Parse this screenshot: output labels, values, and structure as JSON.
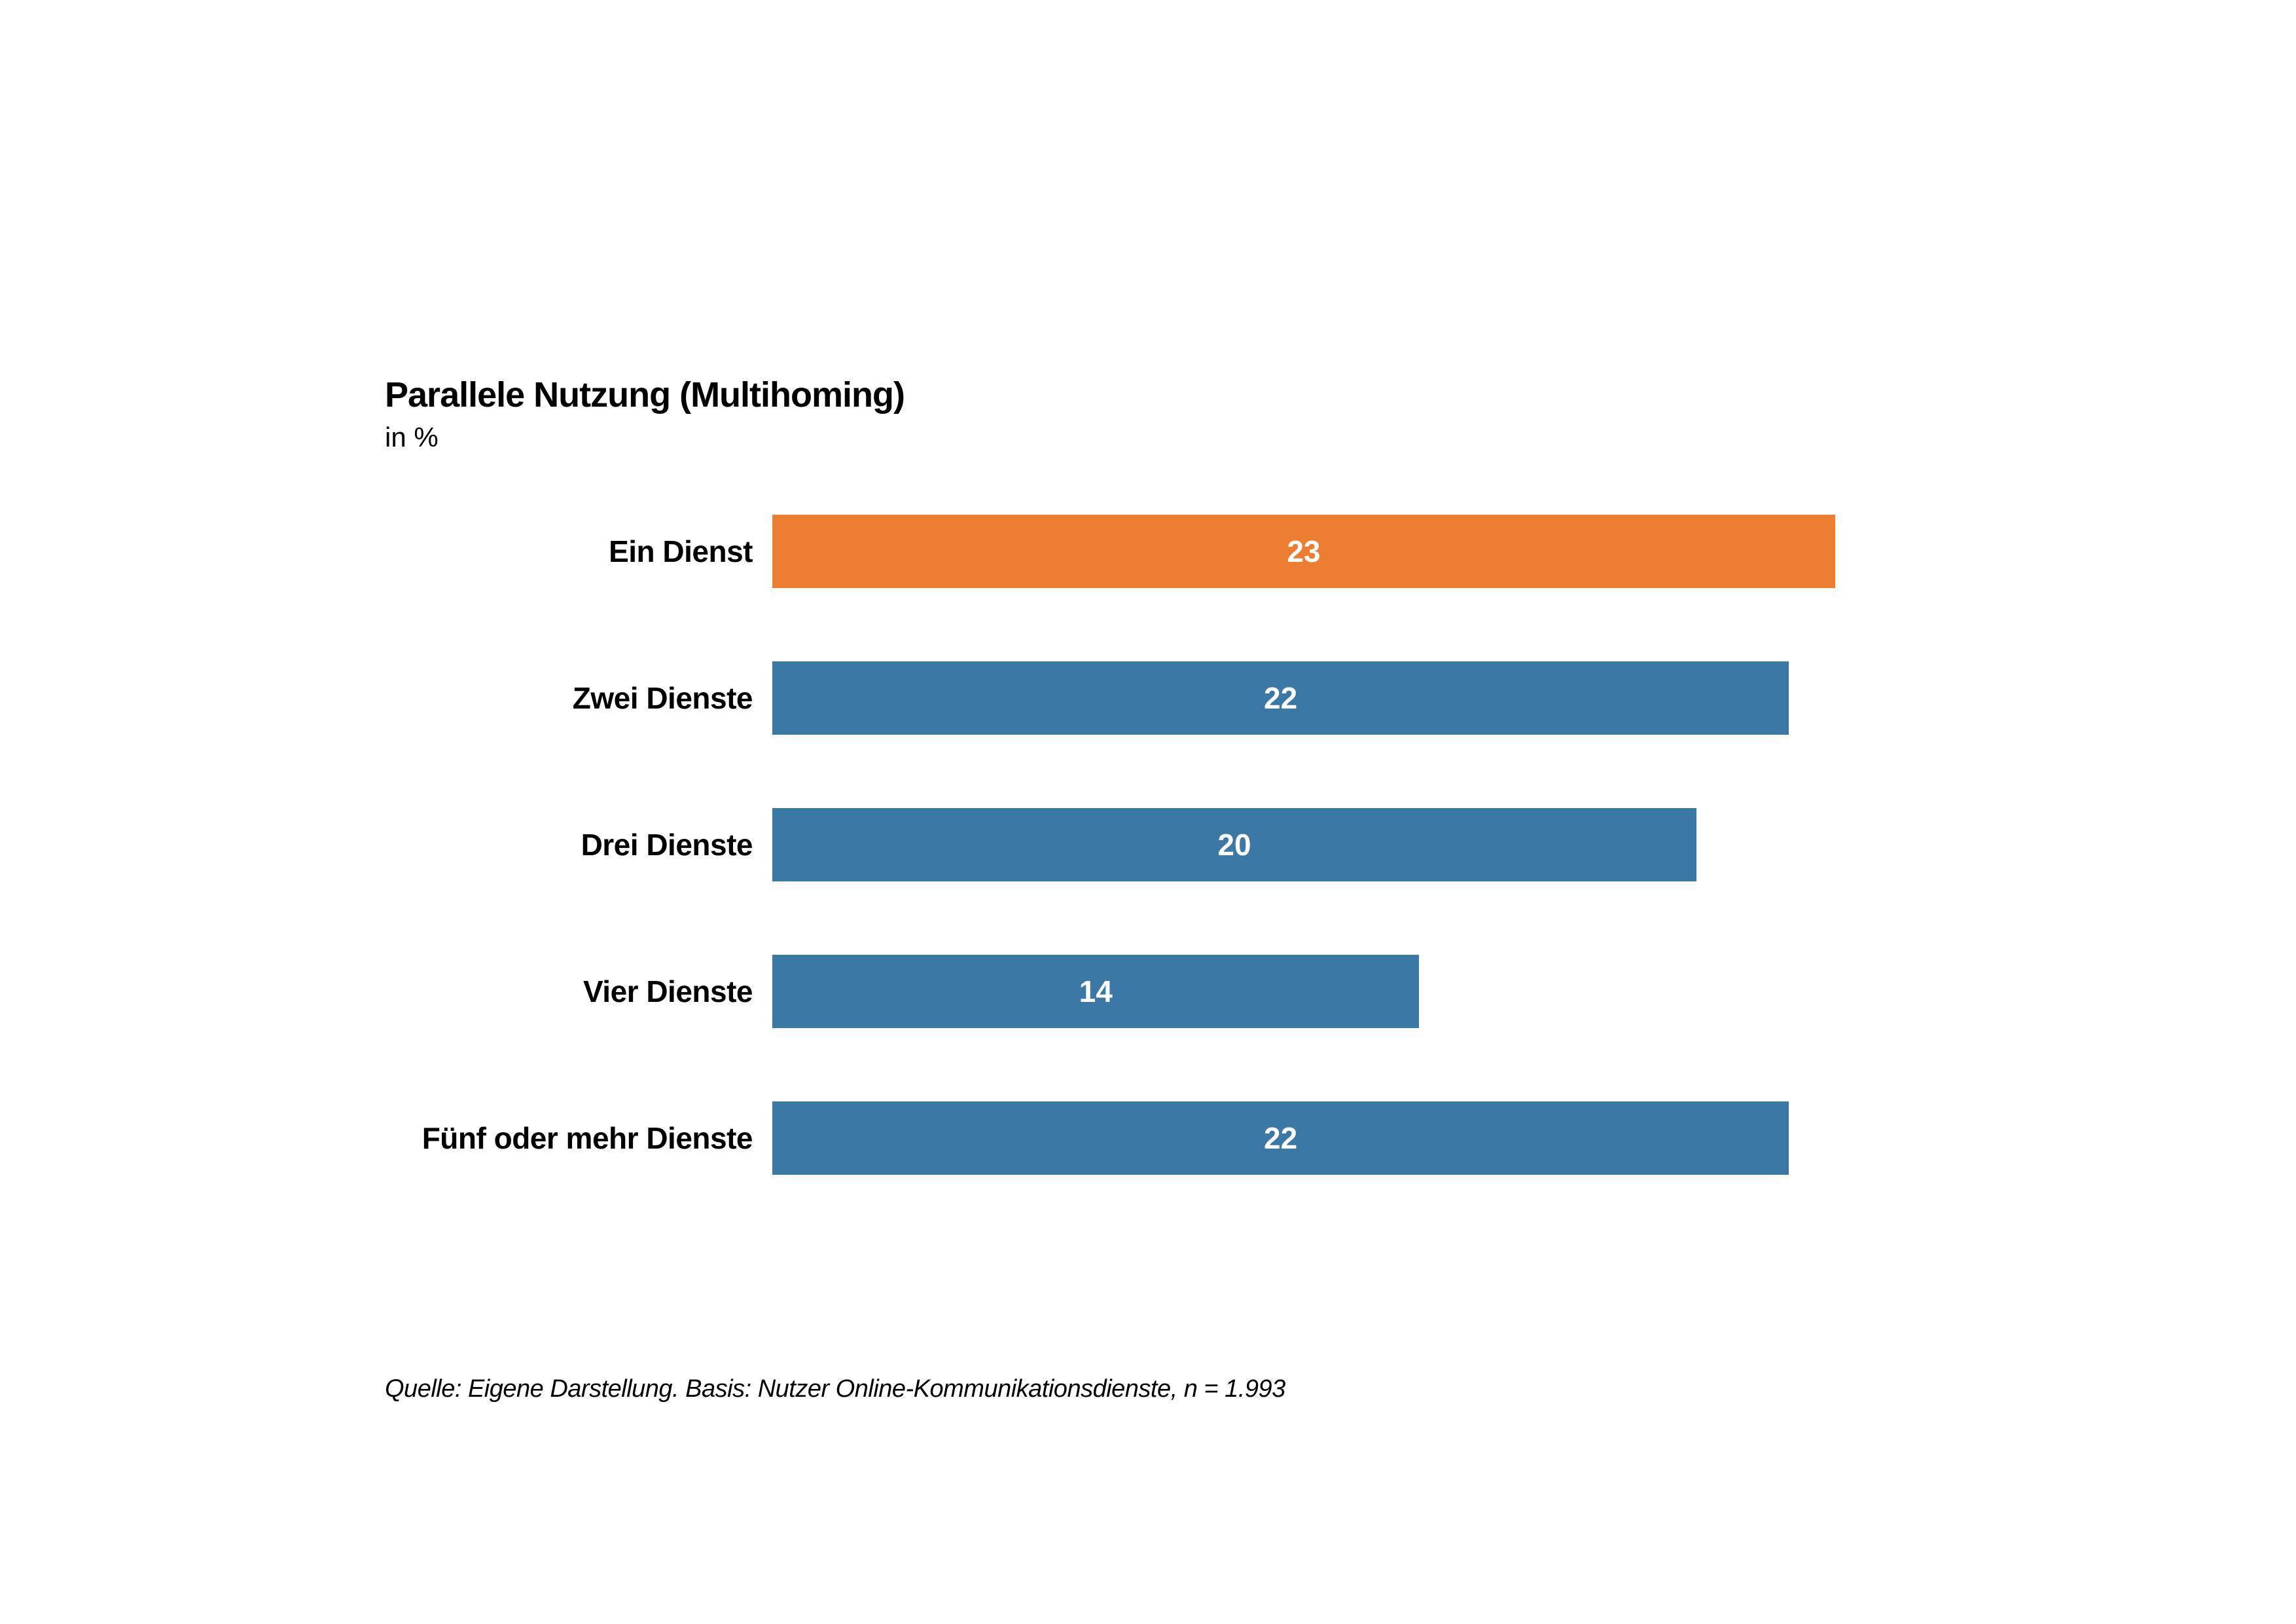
{
  "header": {
    "title": "Parallele Nutzung (Multihoming)",
    "subtitle": "in %"
  },
  "footer": {
    "source": "Quelle: Eigene Darstellung. Basis: Nutzer Online-Kommunikationsdienste, n = 1.993"
  },
  "colors": {
    "highlight_bar": "#EC7D31",
    "default_bar": "#3C78A6",
    "value_text": "#FFFFFF",
    "label_text": "#000000",
    "background": "#FFFFFF"
  },
  "chart_data": {
    "type": "bar",
    "orientation": "horizontal",
    "title": "Parallele Nutzung (Multihoming)",
    "subtitle": "in %",
    "categories": [
      "Ein Dienst",
      "Zwei Dienste",
      "Drei Dienste",
      "Vier Dienste",
      "Fünf oder mehr Dienste"
    ],
    "values": [
      23,
      22,
      20,
      14,
      22
    ],
    "unit": "%",
    "highlighted_index": 0,
    "value_labels": "centered-inside-bar",
    "axis_visible": false,
    "grid": false,
    "legend": false,
    "xlim": [
      0,
      23
    ],
    "source": "Quelle: Eigene Darstellung. Basis: Nutzer Online-Kommunikationsdienste, n = 1.993"
  }
}
